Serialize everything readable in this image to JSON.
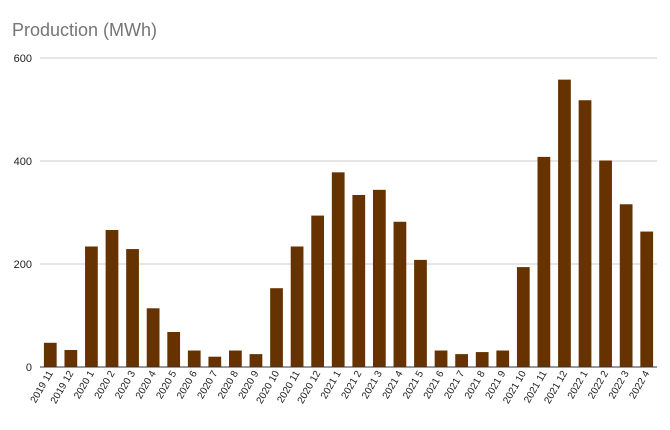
{
  "chart_data": {
    "type": "bar",
    "title": "Production (MWh)",
    "xlabel": "",
    "ylabel": "",
    "ylim": [
      0,
      600
    ],
    "yticks": [
      0,
      200,
      400,
      600
    ],
    "grid": true,
    "legend": "none",
    "bar_color": "#663300",
    "categories": [
      "2019 11",
      "2019 12",
      "2020 1",
      "2020 2",
      "2020 3",
      "2020 4",
      "2020 5",
      "2020 6",
      "2020 7",
      "2020 8",
      "2020 9",
      "2020 10",
      "2020 11",
      "2020 12",
      "2021 1",
      "2021 2",
      "2021 3",
      "2021 4",
      "2021 5",
      "2021 6",
      "2021 7",
      "2021 8",
      "2021 9",
      "2021 10",
      "2021 11",
      "2021 12",
      "2022 1",
      "2022 2",
      "2022 3",
      "2022 4"
    ],
    "values": [
      47,
      33,
      234,
      266,
      229,
      114,
      68,
      32,
      20,
      32,
      25,
      153,
      234,
      294,
      378,
      334,
      344,
      282,
      208,
      32,
      25,
      29,
      32,
      194,
      408,
      558,
      518,
      401,
      316,
      263
    ]
  }
}
